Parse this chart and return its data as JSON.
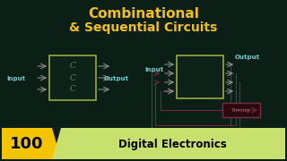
{
  "bg_color": "#0c1f17",
  "title_line1": "Combinational",
  "title_line2": "& Sequential Circuits",
  "title_color": "#f0c020",
  "title_fs1": 11,
  "title_fs2": 10,
  "badge_number": "100",
  "badge_text": "Digital Electronics",
  "badge_yellow": "#f5c400",
  "badge_green": "#c8e06e",
  "comb_box_fc": "#0d2218",
  "comb_box_ec": "#9aaa40",
  "seq_box_fc": "#0d2218",
  "seq_box_ec": "#9aaa40",
  "arrow_color": "#999999",
  "label_color": "#70cccc",
  "feedback_color": "#7a2a4a",
  "timing_box_fc": "#2a0a0a",
  "timing_box_ec": "#7a2a4a",
  "timing_text": "Timing",
  "timing_text_color": "#bb6666",
  "c_symbol_color": "#558855"
}
